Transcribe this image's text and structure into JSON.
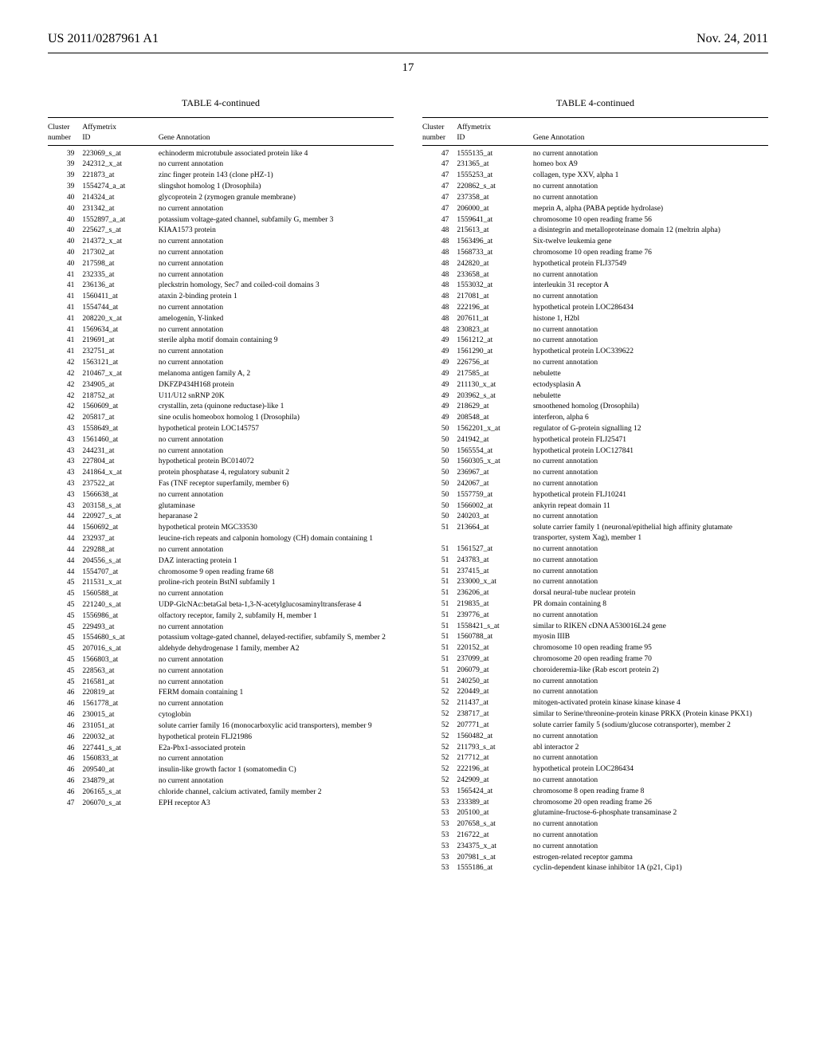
{
  "header": {
    "pub_number": "US 2011/0287961 A1",
    "date": "Nov. 24, 2011",
    "page_number": "17"
  },
  "table": {
    "title": "TABLE 4-continued",
    "columns": {
      "c1a": "Cluster",
      "c1b": "number",
      "c2a": "Affymetrix",
      "c2b": "ID",
      "c3": "Gene Annotation"
    }
  },
  "left_rows": [
    {
      "n": "39",
      "id": "223069_s_at",
      "ann": "echinoderm microtubule associated protein like 4"
    },
    {
      "n": "39",
      "id": "242312_x_at",
      "ann": "no current annotation"
    },
    {
      "n": "39",
      "id": "221873_at",
      "ann": "zinc finger protein 143 (clone pHZ-1)"
    },
    {
      "n": "39",
      "id": "1554274_a_at",
      "ann": "slingshot homolog 1 (Drosophila)"
    },
    {
      "n": "40",
      "id": "214324_at",
      "ann": "glycoprotein 2 (zymogen granule membrane)"
    },
    {
      "n": "40",
      "id": "231342_at",
      "ann": "no current annotation"
    },
    {
      "n": "40",
      "id": "1552897_a_at",
      "ann": "potassium voltage-gated channel, subfamily G, member 3"
    },
    {
      "n": "40",
      "id": "225627_s_at",
      "ann": "KIAA1573 protein"
    },
    {
      "n": "40",
      "id": "214372_x_at",
      "ann": "no current annotation"
    },
    {
      "n": "40",
      "id": "217302_at",
      "ann": "no current annotation"
    },
    {
      "n": "40",
      "id": "217598_at",
      "ann": "no current annotation"
    },
    {
      "n": "41",
      "id": "232335_at",
      "ann": "no current annotation"
    },
    {
      "n": "41",
      "id": "236136_at",
      "ann": "pleckstrin homology, Sec7 and coiled-coil domains 3"
    },
    {
      "n": "41",
      "id": "1560411_at",
      "ann": "ataxin 2-binding protein 1"
    },
    {
      "n": "41",
      "id": "1554744_at",
      "ann": "no current annotation"
    },
    {
      "n": "41",
      "id": "208220_x_at",
      "ann": "amelogenin, Y-linked"
    },
    {
      "n": "41",
      "id": "1569634_at",
      "ann": "no current annotation"
    },
    {
      "n": "41",
      "id": "219691_at",
      "ann": "sterile alpha motif domain containing 9"
    },
    {
      "n": "41",
      "id": "232751_at",
      "ann": "no current annotation"
    },
    {
      "n": "42",
      "id": "1563121_at",
      "ann": "no current annotation"
    },
    {
      "n": "42",
      "id": "210467_x_at",
      "ann": "melanoma antigen family A, 2"
    },
    {
      "n": "42",
      "id": "234905_at",
      "ann": "DKFZP434H168 protein"
    },
    {
      "n": "42",
      "id": "218752_at",
      "ann": "U11/U12 snRNP 20K"
    },
    {
      "n": "42",
      "id": "1560609_at",
      "ann": "crystallin, zeta (quinone reductase)-like 1"
    },
    {
      "n": "42",
      "id": "205817_at",
      "ann": "sine oculis homeobox homolog 1 (Drosophila)"
    },
    {
      "n": "43",
      "id": "1558649_at",
      "ann": "hypothetical protein LOC145757"
    },
    {
      "n": "43",
      "id": "1561460_at",
      "ann": "no current annotation"
    },
    {
      "n": "43",
      "id": "244231_at",
      "ann": "no current annotation"
    },
    {
      "n": "43",
      "id": "227804_at",
      "ann": "hypothetical protein BC014072"
    },
    {
      "n": "43",
      "id": "241864_x_at",
      "ann": "protein phosphatase 4, regulatory subunit 2"
    },
    {
      "n": "43",
      "id": "237522_at",
      "ann": "Fas (TNF receptor superfamily, member 6)"
    },
    {
      "n": "43",
      "id": "1566638_at",
      "ann": "no current annotation"
    },
    {
      "n": "43",
      "id": "203158_s_at",
      "ann": "glutaminase"
    },
    {
      "n": "44",
      "id": "220927_s_at",
      "ann": "heparanase 2"
    },
    {
      "n": "44",
      "id": "1560692_at",
      "ann": "hypothetical protein MGC33530"
    },
    {
      "n": "44",
      "id": "232937_at",
      "ann": "leucine-rich repeats and calponin homology (CH) domain containing 1"
    },
    {
      "n": "44",
      "id": "229288_at",
      "ann": "no current annotation"
    },
    {
      "n": "44",
      "id": "204556_s_at",
      "ann": "DAZ interacting protein 1"
    },
    {
      "n": "44",
      "id": "1554707_at",
      "ann": "chromosome 9 open reading frame 68"
    },
    {
      "n": "45",
      "id": "211531_x_at",
      "ann": "proline-rich protein BstNI subfamily 1"
    },
    {
      "n": "45",
      "id": "1560588_at",
      "ann": "no current annotation"
    },
    {
      "n": "45",
      "id": "221240_s_at",
      "ann": "UDP-GlcNAc:betaGal beta-1,3-N-acetylglucosaminyltransferase 4"
    },
    {
      "n": "45",
      "id": "1556986_at",
      "ann": "olfactory receptor, family 2, subfamily H, member 1"
    },
    {
      "n": "45",
      "id": "229493_at",
      "ann": "no current annotation"
    },
    {
      "n": "45",
      "id": "1554680_s_at",
      "ann": "potassium voltage-gated channel, delayed-rectifier, subfamily S, member 2"
    },
    {
      "n": "45",
      "id": "207016_s_at",
      "ann": "aldehyde dehydrogenase 1 family, member A2"
    },
    {
      "n": "45",
      "id": "1566803_at",
      "ann": "no current annotation"
    },
    {
      "n": "45",
      "id": "228563_at",
      "ann": "no current annotation"
    },
    {
      "n": "45",
      "id": "216581_at",
      "ann": "no current annotation"
    },
    {
      "n": "46",
      "id": "220819_at",
      "ann": "FERM domain containing 1"
    },
    {
      "n": "46",
      "id": "1561778_at",
      "ann": "no current annotation"
    },
    {
      "n": "46",
      "id": "230015_at",
      "ann": "cytoglobin"
    },
    {
      "n": "46",
      "id": "231051_at",
      "ann": "solute carrier family 16 (monocarboxylic acid transporters), member 9"
    },
    {
      "n": "46",
      "id": "220032_at",
      "ann": "hypothetical protein FLJ21986"
    },
    {
      "n": "46",
      "id": "227441_s_at",
      "ann": "E2a-Pbx1-associated protein"
    },
    {
      "n": "46",
      "id": "1560833_at",
      "ann": "no current annotation"
    },
    {
      "n": "46",
      "id": "209540_at",
      "ann": "insulin-like growth factor 1 (somatomedin C)"
    },
    {
      "n": "46",
      "id": "234879_at",
      "ann": "no current annotation"
    },
    {
      "n": "46",
      "id": "206165_s_at",
      "ann": "chloride channel, calcium activated, family member 2"
    },
    {
      "n": "47",
      "id": "206070_s_at",
      "ann": "EPH receptor A3"
    }
  ],
  "right_rows": [
    {
      "n": "47",
      "id": "1555135_at",
      "ann": "no current annotation"
    },
    {
      "n": "47",
      "id": "231365_at",
      "ann": "homeo box A9"
    },
    {
      "n": "47",
      "id": "1555253_at",
      "ann": "collagen, type XXV, alpha 1"
    },
    {
      "n": "47",
      "id": "220862_s_at",
      "ann": "no current annotation"
    },
    {
      "n": "47",
      "id": "237358_at",
      "ann": "no current annotation"
    },
    {
      "n": "47",
      "id": "206000_at",
      "ann": "meprin A, alpha (PABA peptide hydrolase)"
    },
    {
      "n": "47",
      "id": "1559641_at",
      "ann": "chromosome 10 open reading frame 56"
    },
    {
      "n": "48",
      "id": "215613_at",
      "ann": "a disintegrin and metalloproteinase domain 12 (meltrin alpha)"
    },
    {
      "n": "48",
      "id": "1563496_at",
      "ann": "Six-twelve leukemia gene"
    },
    {
      "n": "48",
      "id": "1568733_at",
      "ann": "chromosome 10 open reading frame 76"
    },
    {
      "n": "48",
      "id": "242820_at",
      "ann": "hypothetical protein FLJ37549"
    },
    {
      "n": "48",
      "id": "233658_at",
      "ann": "no current annotation"
    },
    {
      "n": "48",
      "id": "1553032_at",
      "ann": "interleukin 31 receptor A"
    },
    {
      "n": "48",
      "id": "217081_at",
      "ann": "no current annotation"
    },
    {
      "n": "48",
      "id": "222196_at",
      "ann": "hypothetical protein LOC286434"
    },
    {
      "n": "48",
      "id": "207611_at",
      "ann": "histone 1, H2bl"
    },
    {
      "n": "48",
      "id": "230823_at",
      "ann": "no current annotation"
    },
    {
      "n": "49",
      "id": "1561212_at",
      "ann": "no current annotation"
    },
    {
      "n": "49",
      "id": "1561290_at",
      "ann": "hypothetical protein LOC339622"
    },
    {
      "n": "49",
      "id": "226756_at",
      "ann": "no current annotation"
    },
    {
      "n": "49",
      "id": "217585_at",
      "ann": "nebulette"
    },
    {
      "n": "49",
      "id": "211130_x_at",
      "ann": "ectodysplasin A"
    },
    {
      "n": "49",
      "id": "203962_s_at",
      "ann": "nebulette"
    },
    {
      "n": "49",
      "id": "218629_at",
      "ann": "smoothened homolog (Drosophila)"
    },
    {
      "n": "49",
      "id": "208548_at",
      "ann": "interferon, alpha 6"
    },
    {
      "n": "50",
      "id": "1562201_x_at",
      "ann": "regulator of G-protein signalling 12"
    },
    {
      "n": "50",
      "id": "241942_at",
      "ann": "hypothetical protein FLJ25471"
    },
    {
      "n": "50",
      "id": "1565554_at",
      "ann": "hypothetical protein LOC127841"
    },
    {
      "n": "50",
      "id": "1560305_x_at",
      "ann": "no current annotation"
    },
    {
      "n": "50",
      "id": "236967_at",
      "ann": "no current annotation"
    },
    {
      "n": "50",
      "id": "242067_at",
      "ann": "no current annotation"
    },
    {
      "n": "50",
      "id": "1557759_at",
      "ann": "hypothetical protein FLJ10241"
    },
    {
      "n": "50",
      "id": "1566002_at",
      "ann": "ankyrin repeat domain 11"
    },
    {
      "n": "50",
      "id": "240203_at",
      "ann": "no current annotation"
    },
    {
      "n": "51",
      "id": "213664_at",
      "ann": "solute carrier family 1 (neuronal/epithelial high affinity glutamate transporter, system Xag), member 1"
    },
    {
      "n": "51",
      "id": "1561527_at",
      "ann": "no current annotation"
    },
    {
      "n": "51",
      "id": "243783_at",
      "ann": "no current annotation"
    },
    {
      "n": "51",
      "id": "237415_at",
      "ann": "no current annotation"
    },
    {
      "n": "51",
      "id": "233000_x_at",
      "ann": "no current annotation"
    },
    {
      "n": "51",
      "id": "236206_at",
      "ann": "dorsal neural-tube nuclear protein"
    },
    {
      "n": "51",
      "id": "219835_at",
      "ann": "PR domain containing 8"
    },
    {
      "n": "51",
      "id": "239776_at",
      "ann": "no current annotation"
    },
    {
      "n": "51",
      "id": "1558421_s_at",
      "ann": "similar to RIKEN cDNA A530016L24 gene"
    },
    {
      "n": "51",
      "id": "1560788_at",
      "ann": "myosin IIIB"
    },
    {
      "n": "51",
      "id": "220152_at",
      "ann": "chromosome 10 open reading frame 95"
    },
    {
      "n": "51",
      "id": "237099_at",
      "ann": "chromosome 20 open reading frame 70"
    },
    {
      "n": "51",
      "id": "206079_at",
      "ann": "choroideremia-like (Rab escort protein 2)"
    },
    {
      "n": "51",
      "id": "240250_at",
      "ann": "no current annotation"
    },
    {
      "n": "52",
      "id": "220449_at",
      "ann": "no current annotation"
    },
    {
      "n": "52",
      "id": "211437_at",
      "ann": "mitogen-activated protein kinase kinase kinase 4"
    },
    {
      "n": "52",
      "id": "238717_at",
      "ann": "similar to Serine/threonine-protein kinase PRKX (Protein kinase PKX1)"
    },
    {
      "n": "52",
      "id": "207771_at",
      "ann": "solute carrier family 5 (sodium/glucose cotransporter), member 2"
    },
    {
      "n": "52",
      "id": "1560482_at",
      "ann": "no current annotation"
    },
    {
      "n": "52",
      "id": "211793_s_at",
      "ann": "abl interactor 2"
    },
    {
      "n": "52",
      "id": "217712_at",
      "ann": "no current annotation"
    },
    {
      "n": "52",
      "id": "222196_at",
      "ann": "hypothetical protein LOC286434"
    },
    {
      "n": "52",
      "id": "242909_at",
      "ann": "no current annotation"
    },
    {
      "n": "53",
      "id": "1565424_at",
      "ann": "chromosome 8 open reading frame 8"
    },
    {
      "n": "53",
      "id": "233389_at",
      "ann": "chromosome 20 open reading frame 26"
    },
    {
      "n": "53",
      "id": "205100_at",
      "ann": "glutamine-fructose-6-phosphate transaminase 2"
    },
    {
      "n": "53",
      "id": "207658_s_at",
      "ann": "no current annotation"
    },
    {
      "n": "53",
      "id": "216722_at",
      "ann": "no current annotation"
    },
    {
      "n": "53",
      "id": "234375_x_at",
      "ann": "no current annotation"
    },
    {
      "n": "53",
      "id": "207981_s_at",
      "ann": "estrogen-related receptor gamma"
    },
    {
      "n": "53",
      "id": "1555186_at",
      "ann": "cyclin-dependent kinase inhibitor 1A (p21, Cip1)"
    }
  ]
}
